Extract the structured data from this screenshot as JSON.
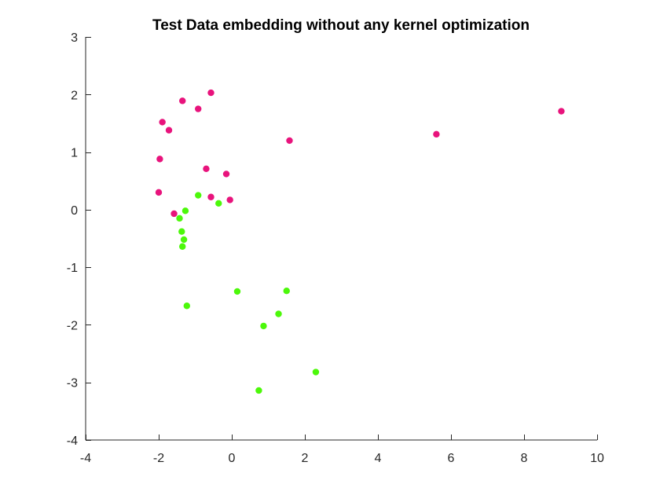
{
  "chart_data": {
    "type": "scatter",
    "title": "Test Data embedding without any kernel optimization",
    "xlabel": "",
    "ylabel": "",
    "xlim": [
      -4,
      10
    ],
    "ylim": [
      -4,
      3
    ],
    "xticks": [
      -4,
      -2,
      0,
      2,
      4,
      6,
      8,
      10
    ],
    "yticks": [
      -4,
      -3,
      -2,
      -1,
      0,
      1,
      2,
      3
    ],
    "xtick_labels": [
      "-4",
      "-2",
      "0",
      "2",
      "4",
      "6",
      "8",
      "10"
    ],
    "ytick_labels": [
      "-4",
      "-3",
      "-2",
      "-1",
      "0",
      "1",
      "2",
      "3"
    ],
    "grid": false,
    "legend": "none",
    "series": [
      {
        "color": "#e8137c",
        "x": [
          -0.57,
          -1.35,
          -0.92,
          -1.9,
          -1.72,
          1.58,
          5.6,
          9.02,
          -1.97,
          -0.7,
          -0.15,
          -2.0,
          -0.57,
          -0.05,
          -1.58
        ],
        "y": [
          2.03,
          1.89,
          1.75,
          1.52,
          1.38,
          1.2,
          1.31,
          1.71,
          0.88,
          0.71,
          0.62,
          0.3,
          0.22,
          0.17,
          -0.07
        ]
      },
      {
        "color": "#4cf80a",
        "x": [
          -0.92,
          -0.36,
          -1.27,
          -1.43,
          -1.37,
          -1.31,
          -1.35,
          -1.23,
          0.15,
          1.5,
          1.28,
          0.87,
          2.3,
          0.74
        ],
        "y": [
          0.25,
          0.11,
          -0.02,
          -0.15,
          -0.38,
          -0.52,
          -0.64,
          -1.67,
          -1.42,
          -1.41,
          -1.81,
          -2.02,
          -2.82,
          -3.14
        ]
      }
    ]
  }
}
